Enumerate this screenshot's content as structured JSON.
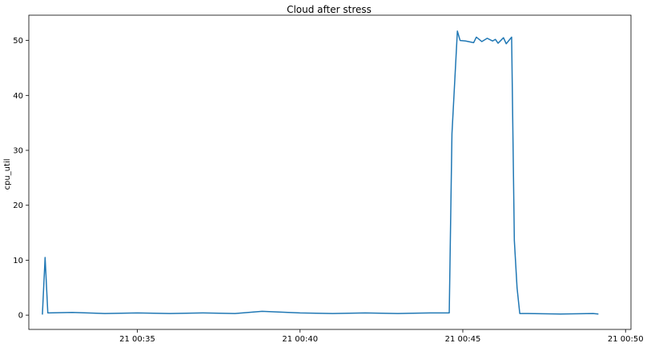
{
  "chart_data": {
    "type": "line",
    "title": "Cloud after stress",
    "xlabel": "",
    "ylabel": "cpu_util",
    "xlim": [
      "21 00:31:40",
      "21 00:50:10"
    ],
    "ylim": [
      -2.6,
      54.6
    ],
    "grid": false,
    "legend": "none",
    "line_color": "#1f77b4",
    "x_ticks": [
      "21 00:35",
      "21 00:40",
      "21 00:45",
      "21 00:50"
    ],
    "y_ticks": [
      "0",
      "10",
      "20",
      "30",
      "40",
      "50"
    ],
    "series": [
      {
        "x": [
          "21 00:32:05",
          "21 00:32:10",
          "21 00:32:15",
          "21 00:33:00",
          "21 00:34:00",
          "21 00:35:00",
          "21 00:36:00",
          "21 00:37:00",
          "21 00:38:00",
          "21 00:38:50",
          "21 00:40:00",
          "21 00:41:00",
          "21 00:42:00",
          "21 00:43:00",
          "21 00:44:00",
          "21 00:44:35",
          "21 00:44:40",
          "21 00:44:50",
          "21 00:44:55",
          "21 00:45:05",
          "21 00:45:20",
          "21 00:45:25",
          "21 00:45:35",
          "21 00:45:45",
          "21 00:45:55",
          "21 00:46:00",
          "21 00:46:05",
          "21 00:46:15",
          "21 00:46:20",
          "21 00:46:30",
          "21 00:46:35",
          "21 00:46:40",
          "21 00:46:45",
          "21 00:47:00",
          "21 00:48:00",
          "21 00:49:00",
          "21 00:49:10"
        ],
        "y": [
          0.1,
          10.5,
          0.4,
          0.5,
          0.3,
          0.4,
          0.3,
          0.4,
          0.3,
          0.7,
          0.4,
          0.3,
          0.4,
          0.3,
          0.4,
          0.4,
          33.0,
          51.7,
          50.0,
          49.9,
          49.6,
          50.6,
          49.8,
          50.4,
          49.9,
          50.2,
          49.5,
          50.5,
          49.4,
          50.6,
          13.6,
          5.0,
          0.3,
          0.3,
          0.2,
          0.3,
          0.2
        ]
      }
    ]
  }
}
